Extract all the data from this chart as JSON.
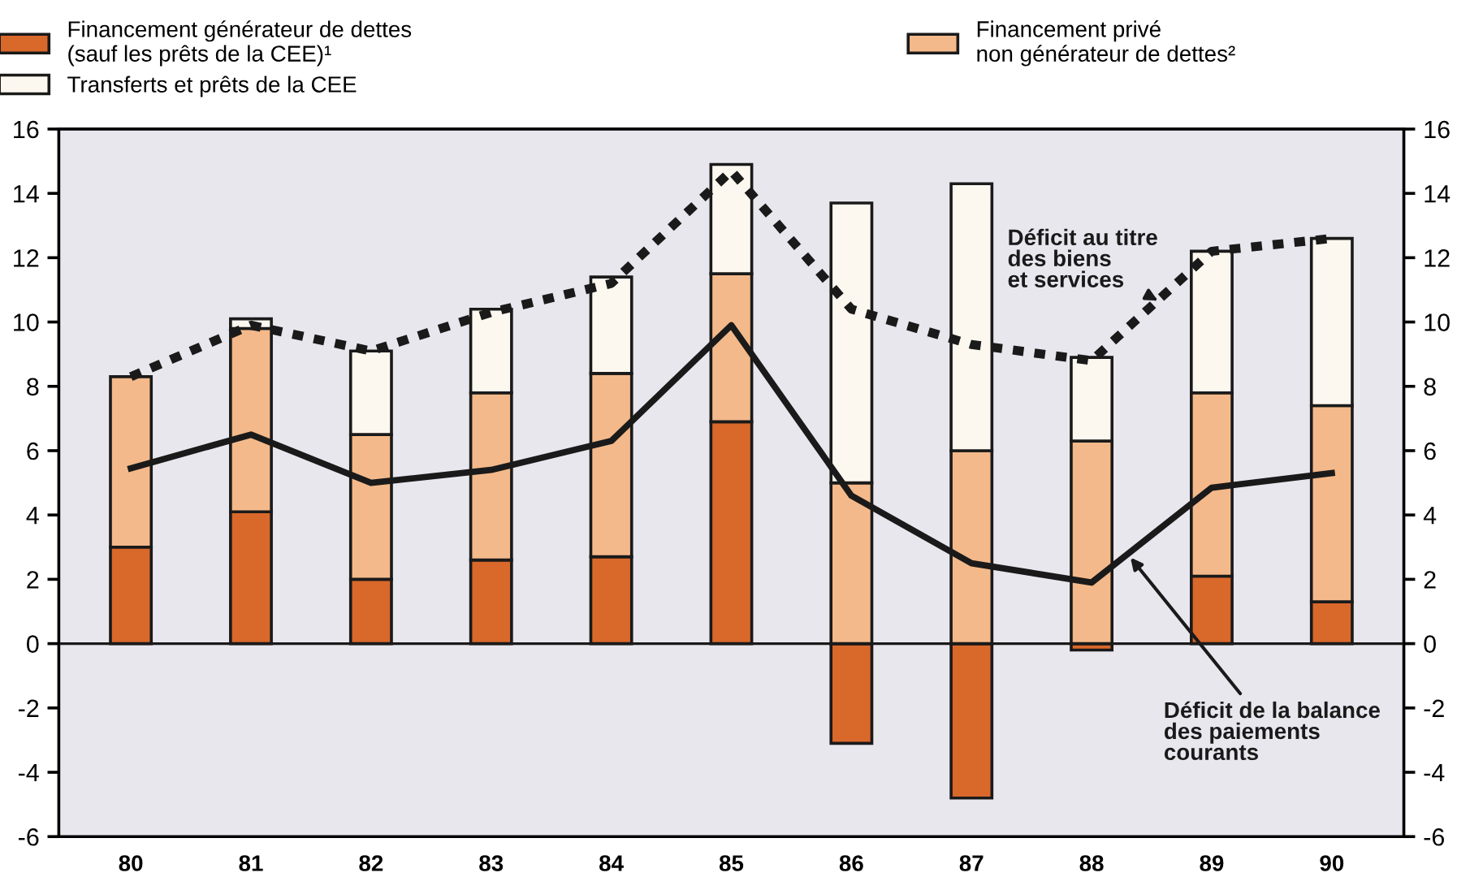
{
  "chart_data": {
    "type": "bar",
    "stacked": true,
    "categories": [
      "80",
      "81",
      "82",
      "83",
      "84",
      "85",
      "86",
      "87",
      "88",
      "89",
      "90"
    ],
    "series": [
      {
        "name": "Financement générateur de dettes\n(sauf les prêts de la CEE)¹",
        "color": "#d9682b",
        "values": [
          3.0,
          4.1,
          2.0,
          2.6,
          2.7,
          6.9,
          -3.1,
          -4.8,
          -0.2,
          2.1,
          1.3
        ]
      },
      {
        "name": "Financement privé\nnon générateur de dettes²",
        "color": "#f4b98a",
        "values": [
          5.3,
          5.7,
          4.5,
          5.2,
          5.7,
          4.6,
          5.0,
          6.0,
          6.3,
          5.7,
          6.1
        ]
      },
      {
        "name": "Transferts et prêts de la CEE",
        "color": "#fdf8ef",
        "values": [
          null,
          0.3,
          2.6,
          2.6,
          3.0,
          3.4,
          8.7,
          8.3,
          2.6,
          4.4,
          5.2
        ]
      },
      {
        "name": "Déficit au titre\ndes biens\net services",
        "type": "line",
        "color": "#1a1a1a",
        "line_style": "dotted",
        "values": [
          8.3,
          9.9,
          9.1,
          10.3,
          11.2,
          14.7,
          10.4,
          9.3,
          8.8,
          12.2,
          12.6
        ]
      },
      {
        "name": "Déficit de la balance\ndes paiements\ncourants",
        "type": "line",
        "color": "#1a1a1a",
        "line_style": "solid",
        "values": [
          5.45,
          6.5,
          5.0,
          5.4,
          6.3,
          9.9,
          4.6,
          2.5,
          1.9,
          4.85,
          5.3
        ]
      }
    ],
    "ylim": [
      -6,
      16
    ],
    "yticks": [
      -6,
      -4,
      -2,
      0,
      2,
      4,
      6,
      8,
      10,
      12,
      14,
      16
    ],
    "y2lim": [
      -6,
      16
    ],
    "y2ticks": [
      -6,
      -4,
      -2,
      0,
      2,
      4,
      6,
      8,
      10,
      12,
      14,
      16
    ],
    "ref_lines": [
      {
        "axis": "y",
        "value": 0,
        "color": "#1a1a1a",
        "line_style": "solid"
      }
    ],
    "grid": false,
    "legend": "top",
    "marker": "none"
  }
}
